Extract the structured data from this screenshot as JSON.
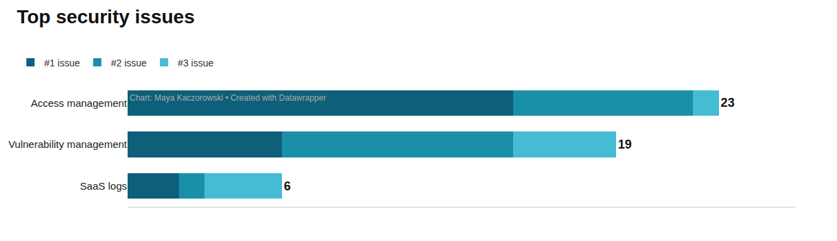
{
  "chart_data": {
    "type": "bar",
    "title": "Top security issues",
    "orientation": "horizontal",
    "stacked": true,
    "categories": [
      "Access management",
      "Vulnerability management",
      "SaaS logs"
    ],
    "series": [
      {
        "name": "#1 issue",
        "color": "#0d5f7a",
        "values": [
          15,
          6,
          2
        ]
      },
      {
        "name": "#2 issue",
        "color": "#1a8fa8",
        "values": [
          7,
          9,
          1
        ]
      },
      {
        "name": "#3 issue",
        "color": "#45bcd4",
        "values": [
          1,
          4,
          3
        ]
      }
    ],
    "totals": [
      23,
      19,
      6
    ],
    "xlim": [
      0,
      26
    ],
    "tick_labels": "y",
    "grid": false,
    "legend": "top left",
    "annotations": [
      "Chart: Maya Kaczorowski • Created with Datawrapper"
    ]
  }
}
